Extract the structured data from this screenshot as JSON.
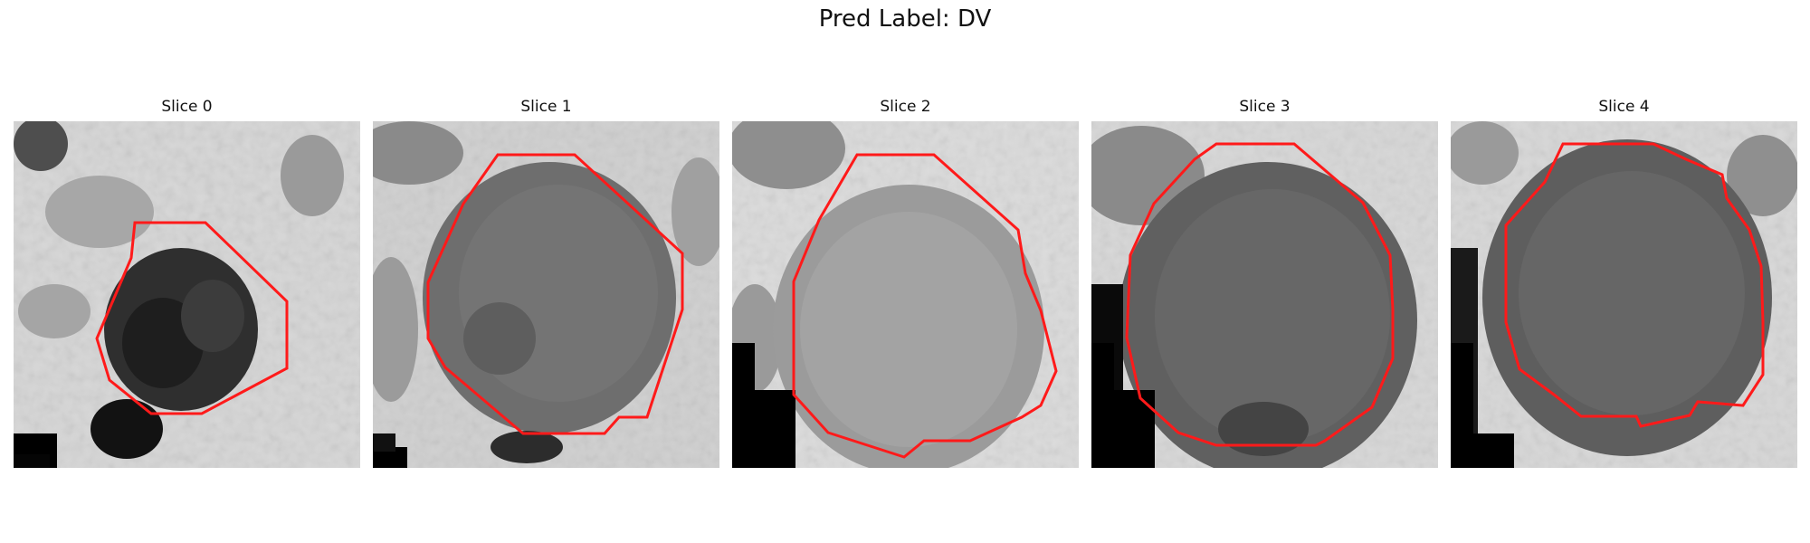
{
  "figure": {
    "suptitle": "Pred Label: DV"
  },
  "panels": [
    {
      "title": "Slice 0"
    },
    {
      "title": "Slice 1"
    },
    {
      "title": "Slice 2"
    },
    {
      "title": "Slice 3"
    },
    {
      "title": "Slice 4"
    }
  ],
  "colors": {
    "contour": "#ff1a1a",
    "background": "#ffffff"
  }
}
